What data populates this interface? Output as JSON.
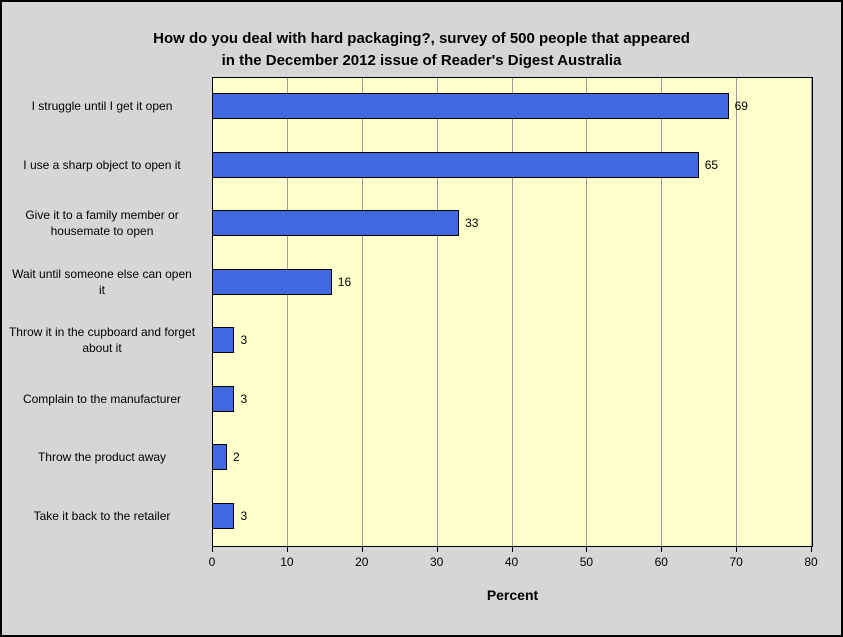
{
  "chart_data": {
    "type": "bar",
    "orientation": "horizontal",
    "title": "How do you deal with hard packaging?, survey of 500 people that appeared\nin the December 2012 issue of Reader's Digest Australia",
    "categories": [
      "I struggle until I get it open",
      "I use a sharp object to open it",
      "Give it to a family member or housemate to open",
      "Wait until someone else can open it",
      "Throw it in the cupboard and forget about it",
      "Complain to the manufacturer",
      "Throw the product away",
      "Take it back to the retailer"
    ],
    "values": [
      69,
      65,
      33,
      16,
      3,
      3,
      2,
      3
    ],
    "xlabel": "Percent",
    "xlim": [
      0,
      80
    ],
    "xticks": [
      0,
      10,
      20,
      30,
      40,
      50,
      60,
      70,
      80
    ],
    "grid": true,
    "legend": "none",
    "colors": {
      "bar": "#4169e1",
      "bar_border": "#000000",
      "plot_bg": "#ffffcc",
      "figure_bg": "#d6d6d6",
      "grid": "#9a9a9a",
      "text": "#000000"
    }
  }
}
